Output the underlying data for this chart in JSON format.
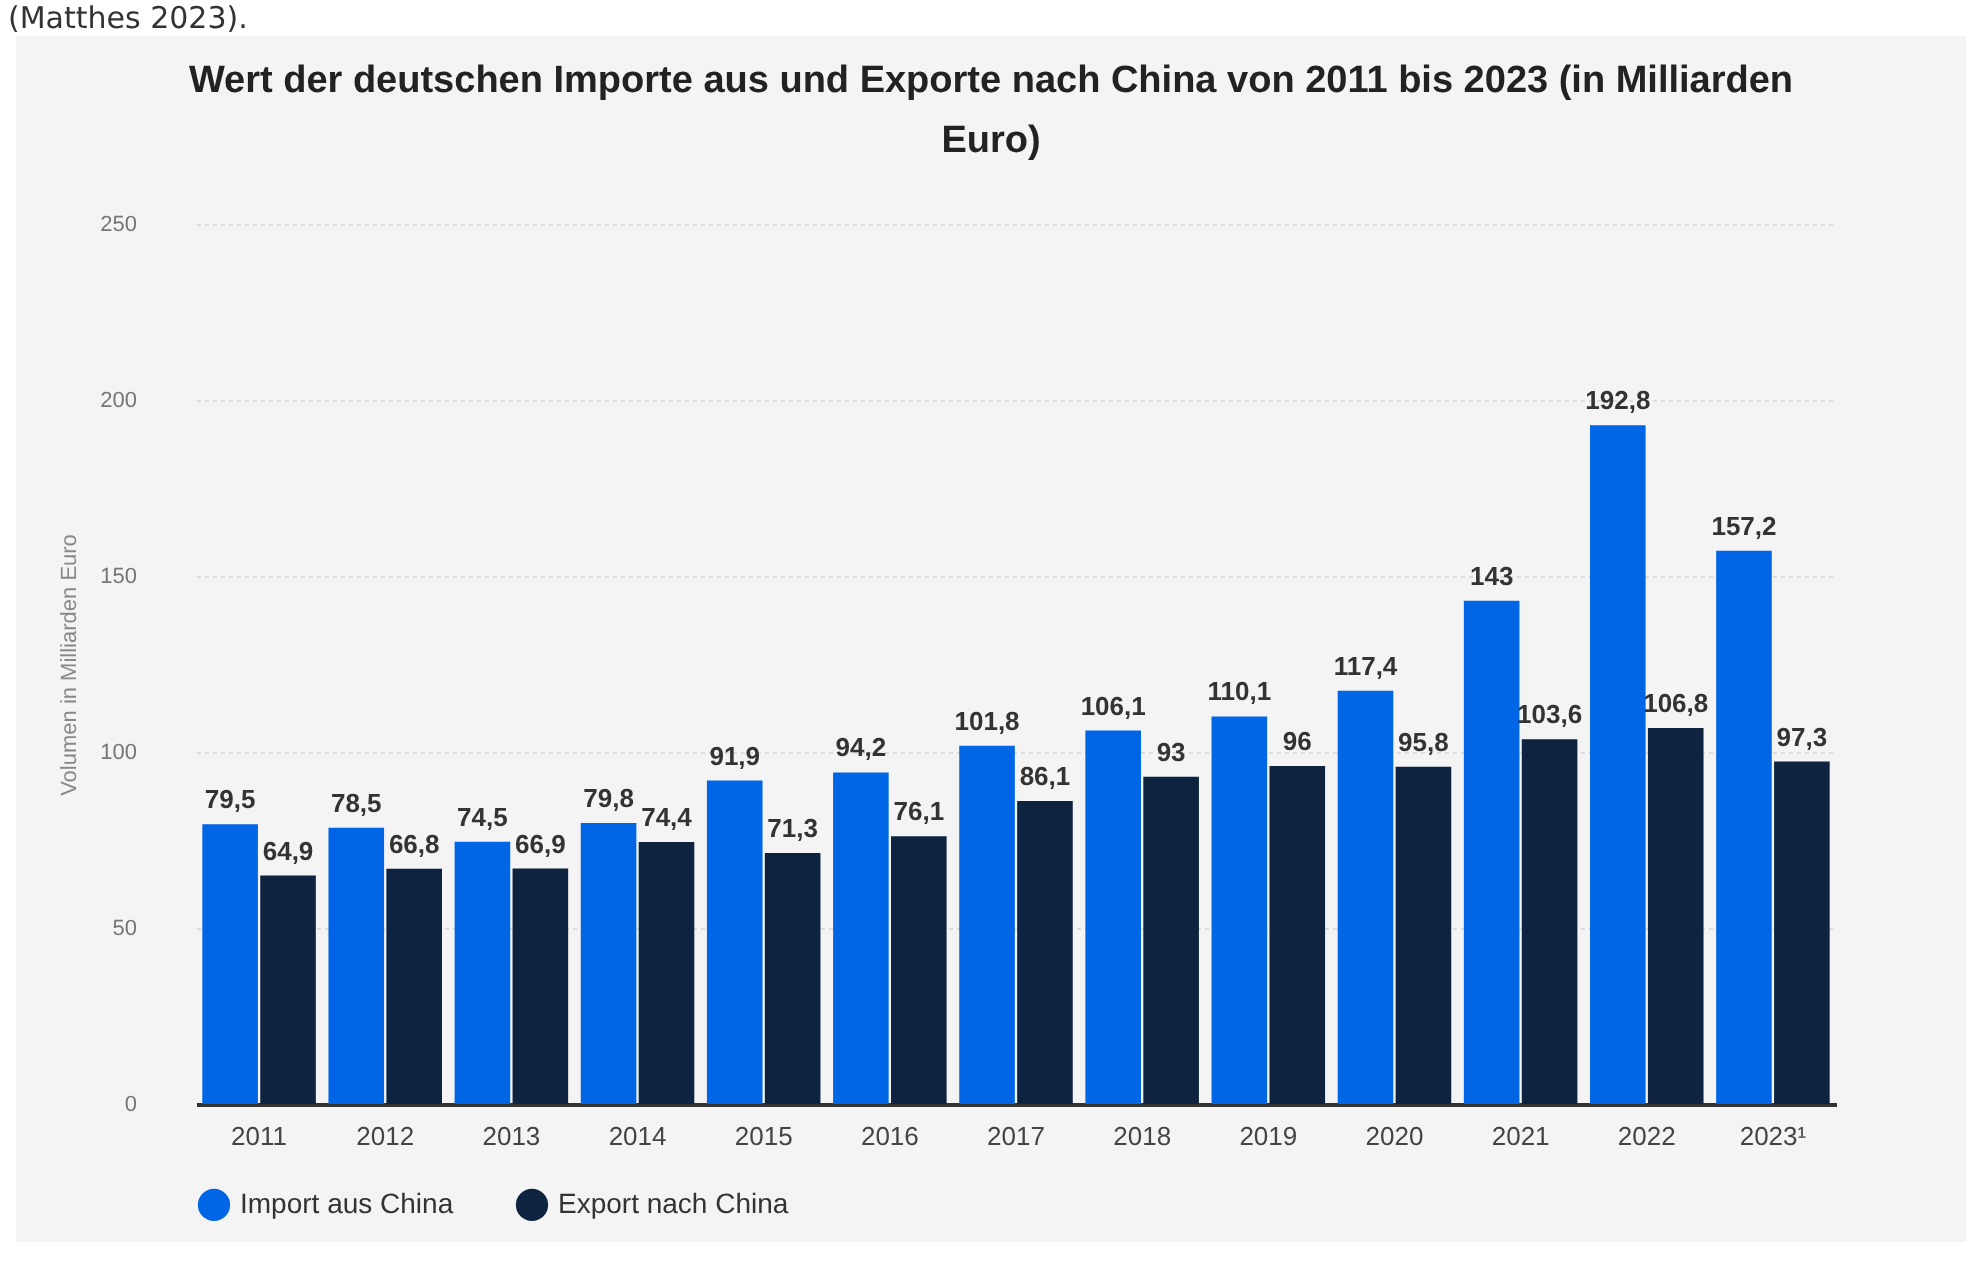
{
  "chart_data": {
    "type": "bar",
    "title": "Wert der deutschen Importe aus und Exporte nach China von 2011 bis 2023 (in Milliarden Euro)",
    "ylabel": "Volumen in Milliarden Euro",
    "annotations": [
      "(Matthes 2023)."
    ],
    "categories": [
      "2011",
      "2012",
      "2013",
      "2014",
      "2015",
      "2016",
      "2017",
      "2018",
      "2019",
      "2020",
      "2021",
      "2022",
      "2023¹"
    ],
    "series": [
      {
        "name": "Import aus China",
        "color": "#0066e6",
        "values": [
          79.5,
          78.5,
          74.5,
          79.8,
          91.9,
          94.2,
          101.8,
          106.1,
          110.1,
          117.4,
          143,
          192.8,
          157.2
        ],
        "value_labels": [
          "79,5",
          "78,5",
          "74,5",
          "79,8",
          "91,9",
          "94,2",
          "101,8",
          "106,1",
          "110,1",
          "117,4",
          "143",
          "192,8",
          "157,2"
        ]
      },
      {
        "name": "Export nach China",
        "color": "#0d2340",
        "values": [
          64.9,
          66.8,
          66.9,
          74.4,
          71.3,
          76.1,
          86.1,
          93,
          96,
          95.8,
          103.6,
          106.8,
          97.3
        ],
        "value_labels": [
          "64,9",
          "66,8",
          "66,9",
          "74,4",
          "71,3",
          "76,1",
          "86,1",
          "93",
          "96",
          "95,8",
          "103,6",
          "106,8",
          "97,3"
        ]
      }
    ],
    "ylim": [
      0,
      250
    ],
    "yticks": [
      0,
      50,
      100,
      150,
      200,
      250
    ],
    "grid": "y",
    "legend": "bottom"
  }
}
